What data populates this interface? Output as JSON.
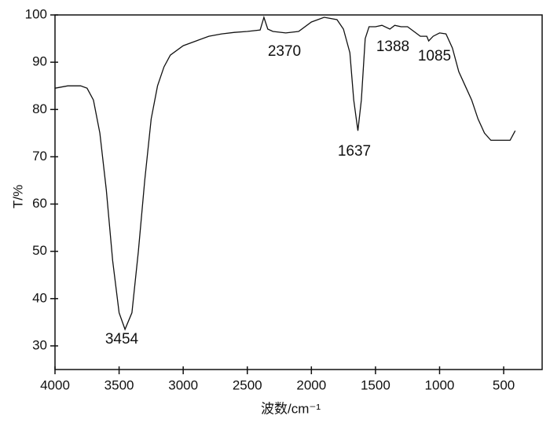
{
  "chart_data": {
    "type": "line",
    "xlabel": "波数/cm⁻¹",
    "ylabel": "T/%",
    "x": [
      4000,
      3900,
      3800,
      3750,
      3700,
      3650,
      3600,
      3550,
      3500,
      3454,
      3400,
      3350,
      3300,
      3250,
      3200,
      3150,
      3100,
      3000,
      2900,
      2800,
      2700,
      2600,
      2500,
      2400,
      2370,
      2340,
      2300,
      2200,
      2100,
      2000,
      1900,
      1800,
      1750,
      1700,
      1670,
      1637,
      1610,
      1580,
      1550,
      1500,
      1450,
      1388,
      1350,
      1300,
      1250,
      1200,
      1150,
      1100,
      1085,
      1050,
      1000,
      950,
      900,
      850,
      800,
      750,
      700,
      650,
      600,
      550,
      500,
      450,
      430,
      410
    ],
    "series": [
      {
        "color": "#111111",
        "values": [
          84.5,
          85,
          85,
          84.5,
          82,
          75,
          63,
          48,
          37,
          33.5,
          37,
          50,
          65,
          78,
          85,
          89,
          91.5,
          93.5,
          94.5,
          95.5,
          96,
          96.3,
          96.5,
          96.8,
          99.5,
          97,
          96.5,
          96.2,
          96.5,
          98.5,
          99.5,
          99,
          97,
          92,
          82,
          75.5,
          82,
          95,
          97.5,
          97.5,
          97.8,
          97,
          97.8,
          97.5,
          97.5,
          96.5,
          95.5,
          95.5,
          94.5,
          95.5,
          96.2,
          96,
          93,
          88,
          85,
          82,
          78,
          75,
          73.5,
          73.5,
          73.5,
          73.5,
          74.5,
          75.5
        ]
      }
    ],
    "annotations": [
      "3454",
      "2370",
      "1637",
      "1388",
      "1085"
    ],
    "xlim": [
      4000,
      200
    ],
    "ylim": [
      25,
      100
    ],
    "xticks": [
      4000,
      3500,
      3000,
      2500,
      2000,
      1500,
      1000,
      500
    ],
    "yticks": [
      30,
      40,
      50,
      60,
      70,
      80,
      90,
      100
    ]
  }
}
